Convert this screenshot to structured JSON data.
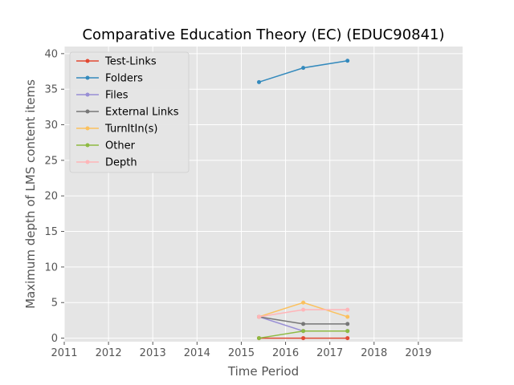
{
  "chart_data": {
    "type": "line",
    "title": "Comparative Education Theory (EC) (EDUC90841)",
    "xlabel": "Time Period",
    "ylabel": "Maximum depth of LMS content items",
    "xlim": [
      2011,
      2020
    ],
    "ylim": [
      -0.5,
      41
    ],
    "xticks": [
      2011,
      2012,
      2013,
      2014,
      2015,
      2016,
      2017,
      2018,
      2019
    ],
    "yticks": [
      0,
      5,
      10,
      15,
      20,
      25,
      30,
      35,
      40
    ],
    "grid": true,
    "legend_position": "top-left",
    "x": [
      2015.4,
      2016.4,
      2017.4
    ],
    "series": [
      {
        "name": "Test-Links",
        "color": "#E24A33",
        "values": [
          0,
          0,
          0
        ]
      },
      {
        "name": "Folders",
        "color": "#348ABD",
        "values": [
          36,
          38,
          39
        ]
      },
      {
        "name": "Files",
        "color": "#988ED5",
        "values": [
          3,
          1,
          1
        ]
      },
      {
        "name": "External Links",
        "color": "#777777",
        "values": [
          3,
          2,
          2
        ]
      },
      {
        "name": "TurnItIn(s)",
        "color": "#FBC15E",
        "values": [
          3,
          5,
          3
        ]
      },
      {
        "name": "Other",
        "color": "#8EBA42",
        "values": [
          0,
          1,
          1
        ]
      },
      {
        "name": "Depth",
        "color": "#FFB5B8",
        "values": [
          3,
          4,
          4
        ]
      }
    ]
  }
}
